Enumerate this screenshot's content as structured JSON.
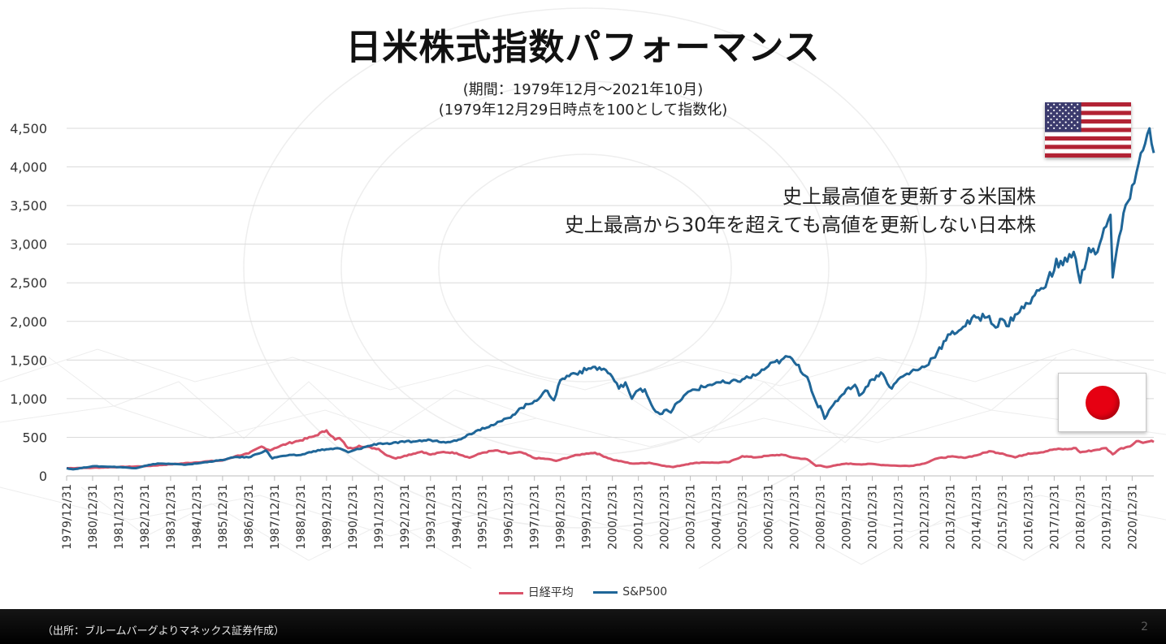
{
  "slide": {
    "title": "日米株式指数パフォーマンス",
    "subtitle_period": "(期間：1979年12月～2021年10月)",
    "subtitle_index": "(1979年12月29日時点を100として指数化)",
    "annotation_line1": "史上最高値を更新する米国株",
    "annotation_line2": "史上最高から30年を超えても高値を更新しない日本株",
    "source": "（出所：ブルームバーグよりマネックス証券作成）",
    "page_number": "2",
    "flags": {
      "us": "us-flag-icon",
      "jp": "japan-flag-icon"
    }
  },
  "chart_data": {
    "type": "line",
    "title": "",
    "xlabel": "",
    "ylabel": "",
    "ylim": [
      0,
      4500
    ],
    "yticks": [
      0,
      500,
      1000,
      1500,
      2000,
      2500,
      3000,
      3500,
      4000,
      4500
    ],
    "ytick_labels": [
      "0",
      "500",
      "1,000",
      "1,500",
      "2,000",
      "2,500",
      "3,000",
      "3,500",
      "4,000",
      "4,500"
    ],
    "grid": true,
    "legend_position": "bottom",
    "categories": [
      "1979/12/31",
      "1980/12/31",
      "1981/12/31",
      "1982/12/31",
      "1983/12/31",
      "1984/12/31",
      "1985/12/31",
      "1986/12/31",
      "1987/12/31",
      "1988/12/31",
      "1989/12/31",
      "1990/12/31",
      "1991/12/31",
      "1992/12/31",
      "1993/12/31",
      "1994/12/31",
      "1995/12/31",
      "1996/12/31",
      "1997/12/31",
      "1998/12/31",
      "1999/12/31",
      "2000/12/31",
      "2001/12/31",
      "2002/12/31",
      "2003/12/31",
      "2004/12/31",
      "2005/12/31",
      "2006/12/31",
      "2007/12/31",
      "2008/12/31",
      "2009/12/31",
      "2010/12/31",
      "2011/12/31",
      "2012/12/31",
      "2013/12/31",
      "2014/12/31",
      "2015/12/31",
      "2016/12/31",
      "2017/12/31",
      "2018/12/31",
      "2019/12/31",
      "2020/12/31"
    ],
    "x_start": "1979-12",
    "x_end": "2021-10",
    "series": [
      {
        "name": "日経平均",
        "color": "#d9536a",
        "points": [
          [
            "1979-12",
            100
          ],
          [
            "1980-12",
            105
          ],
          [
            "1981-12",
            115
          ],
          [
            "1982-12",
            125
          ],
          [
            "1983-12",
            150
          ],
          [
            "1984-12",
            175
          ],
          [
            "1985-06",
            190
          ],
          [
            "1985-12",
            200
          ],
          [
            "1986-06",
            255
          ],
          [
            "1986-12",
            290
          ],
          [
            "1987-06",
            380
          ],
          [
            "1987-10",
            330
          ],
          [
            "1987-12",
            360
          ],
          [
            "1988-06",
            420
          ],
          [
            "1988-12",
            460
          ],
          [
            "1989-06",
            510
          ],
          [
            "1989-12",
            590
          ],
          [
            "1990-04",
            470
          ],
          [
            "1990-06",
            490
          ],
          [
            "1990-10",
            360
          ],
          [
            "1990-12",
            355
          ],
          [
            "1991-03",
            390
          ],
          [
            "1991-12",
            350
          ],
          [
            "1992-03",
            280
          ],
          [
            "1992-08",
            225
          ],
          [
            "1992-12",
            260
          ],
          [
            "1993-08",
            315
          ],
          [
            "1993-12",
            275
          ],
          [
            "1994-06",
            310
          ],
          [
            "1994-12",
            295
          ],
          [
            "1995-06",
            235
          ],
          [
            "1995-12",
            300
          ],
          [
            "1996-06",
            330
          ],
          [
            "1996-12",
            290
          ],
          [
            "1997-06",
            305
          ],
          [
            "1997-12",
            230
          ],
          [
            "1998-06",
            220
          ],
          [
            "1998-10",
            195
          ],
          [
            "1998-12",
            210
          ],
          [
            "1999-06",
            260
          ],
          [
            "1999-12",
            290
          ],
          [
            "2000-04",
            300
          ],
          [
            "2000-12",
            210
          ],
          [
            "2001-09",
            160
          ],
          [
            "2001-12",
            160
          ],
          [
            "2002-05",
            170
          ],
          [
            "2002-12",
            130
          ],
          [
            "2003-04",
            115
          ],
          [
            "2003-12",
            160
          ],
          [
            "2004-06",
            175
          ],
          [
            "2004-12",
            170
          ],
          [
            "2005-06",
            180
          ],
          [
            "2005-12",
            255
          ],
          [
            "2006-06",
            240
          ],
          [
            "2006-12",
            260
          ],
          [
            "2007-06",
            275
          ],
          [
            "2007-12",
            235
          ],
          [
            "2008-06",
            215
          ],
          [
            "2008-10",
            130
          ],
          [
            "2008-12",
            135
          ],
          [
            "2009-03",
            115
          ],
          [
            "2009-12",
            160
          ],
          [
            "2010-06",
            150
          ],
          [
            "2010-12",
            155
          ],
          [
            "2011-03",
            145
          ],
          [
            "2011-12",
            130
          ],
          [
            "2012-06",
            130
          ],
          [
            "2012-12",
            160
          ],
          [
            "2013-05",
            220
          ],
          [
            "2013-12",
            250
          ],
          [
            "2014-06",
            235
          ],
          [
            "2014-12",
            265
          ],
          [
            "2015-06",
            320
          ],
          [
            "2015-12",
            290
          ],
          [
            "2016-06",
            240
          ],
          [
            "2016-12",
            290
          ],
          [
            "2017-06",
            305
          ],
          [
            "2017-12",
            345
          ],
          [
            "2018-06",
            345
          ],
          [
            "2018-10",
            360
          ],
          [
            "2018-12",
            305
          ],
          [
            "2019-06",
            330
          ],
          [
            "2019-12",
            360
          ],
          [
            "2020-03",
            280
          ],
          [
            "2020-06",
            345
          ],
          [
            "2020-12",
            400
          ],
          [
            "2021-02",
            450
          ],
          [
            "2021-06",
            435
          ],
          [
            "2021-09",
            455
          ],
          [
            "2021-10",
            440
          ]
        ]
      },
      {
        "name": "S&P500",
        "color": "#1f6698",
        "points": [
          [
            "1979-12",
            100
          ],
          [
            "1980-03",
            85
          ],
          [
            "1980-12",
            125
          ],
          [
            "1981-06",
            120
          ],
          [
            "1981-12",
            115
          ],
          [
            "1982-08",
            100
          ],
          [
            "1982-12",
            130
          ],
          [
            "1983-06",
            160
          ],
          [
            "1983-12",
            155
          ],
          [
            "1984-06",
            145
          ],
          [
            "1984-12",
            160
          ],
          [
            "1985-06",
            185
          ],
          [
            "1985-12",
            205
          ],
          [
            "1986-06",
            245
          ],
          [
            "1986-12",
            240
          ],
          [
            "1987-08",
            330
          ],
          [
            "1987-11",
            225
          ],
          [
            "1987-12",
            240
          ],
          [
            "1988-06",
            265
          ],
          [
            "1988-12",
            270
          ],
          [
            "1989-06",
            320
          ],
          [
            "1989-12",
            345
          ],
          [
            "1990-06",
            355
          ],
          [
            "1990-10",
            305
          ],
          [
            "1990-12",
            325
          ],
          [
            "1991-06",
            375
          ],
          [
            "1991-12",
            420
          ],
          [
            "1992-06",
            420
          ],
          [
            "1992-12",
            440
          ],
          [
            "1993-06",
            450
          ],
          [
            "1993-12",
            465
          ],
          [
            "1994-06",
            440
          ],
          [
            "1994-12",
            455
          ],
          [
            "1995-06",
            540
          ],
          [
            "1995-12",
            620
          ],
          [
            "1996-06",
            670
          ],
          [
            "1996-12",
            750
          ],
          [
            "1997-06",
            880
          ],
          [
            "1997-12",
            970
          ],
          [
            "1998-06",
            1100
          ],
          [
            "1998-09",
            980
          ],
          [
            "1998-12",
            1240
          ],
          [
            "1999-06",
            1330
          ],
          [
            "1999-12",
            1370
          ],
          [
            "2000-03",
            1410
          ],
          [
            "2000-09",
            1370
          ],
          [
            "2000-12",
            1280
          ],
          [
            "2001-03",
            1130
          ],
          [
            "2001-06",
            1210
          ],
          [
            "2001-09",
            1000
          ],
          [
            "2001-12",
            1110
          ],
          [
            "2002-03",
            1120
          ],
          [
            "2002-07",
            870
          ],
          [
            "2002-10",
            800
          ],
          [
            "2002-12",
            850
          ],
          [
            "2003-03",
            820
          ],
          [
            "2003-06",
            950
          ],
          [
            "2003-12",
            1100
          ],
          [
            "2004-06",
            1150
          ],
          [
            "2004-12",
            1210
          ],
          [
            "2005-06",
            1200
          ],
          [
            "2005-12",
            1250
          ],
          [
            "2006-06",
            1300
          ],
          [
            "2006-12",
            1420
          ],
          [
            "2007-06",
            1500
          ],
          [
            "2007-10",
            1540
          ],
          [
            "2007-12",
            1470
          ],
          [
            "2008-06",
            1280
          ],
          [
            "2008-11",
            890
          ],
          [
            "2008-12",
            905
          ],
          [
            "2009-02",
            740
          ],
          [
            "2009-03",
            780
          ],
          [
            "2009-06",
            920
          ],
          [
            "2009-12",
            1120
          ],
          [
            "2010-04",
            1180
          ],
          [
            "2010-06",
            1040
          ],
          [
            "2010-12",
            1250
          ],
          [
            "2011-04",
            1340
          ],
          [
            "2011-09",
            1130
          ],
          [
            "2011-12",
            1250
          ],
          [
            "2012-06",
            1350
          ],
          [
            "2012-12",
            1410
          ],
          [
            "2013-06",
            1600
          ],
          [
            "2013-12",
            1830
          ],
          [
            "2014-06",
            1930
          ],
          [
            "2014-12",
            2050
          ],
          [
            "2015-06",
            2070
          ],
          [
            "2015-09",
            1920
          ],
          [
            "2015-12",
            2030
          ],
          [
            "2016-02",
            1940
          ],
          [
            "2016-06",
            2090
          ],
          [
            "2016-12",
            2230
          ],
          [
            "2017-06",
            2430
          ],
          [
            "2017-12",
            2660
          ],
          [
            "2018-01",
            2810
          ],
          [
            "2018-02",
            2700
          ],
          [
            "2018-09",
            2900
          ],
          [
            "2018-12",
            2500
          ],
          [
            "2019-04",
            2950
          ],
          [
            "2019-08",
            2900
          ],
          [
            "2019-12",
            3230
          ],
          [
            "2020-02",
            3380
          ],
          [
            "2020-03",
            2570
          ],
          [
            "2020-06",
            3100
          ],
          [
            "2020-12",
            3760
          ],
          [
            "2021-06",
            4300
          ],
          [
            "2021-08",
            4500
          ],
          [
            "2021-09",
            4300
          ],
          [
            "2021-10",
            4180
          ]
        ]
      }
    ]
  }
}
